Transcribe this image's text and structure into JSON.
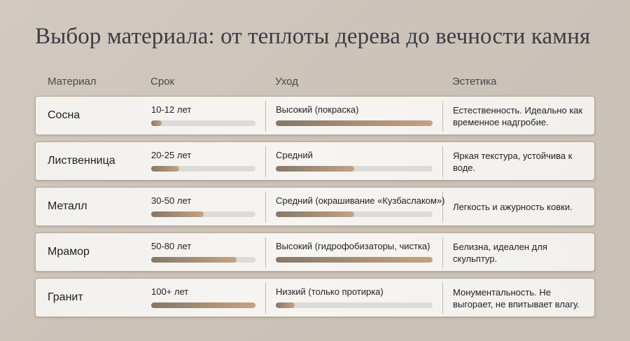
{
  "title": "Выбор материала: от теплоты дерева до вечности камня",
  "headers": {
    "material": "Материал",
    "term": "Срок",
    "care": "Уход",
    "aesthetics": "Эстетика"
  },
  "rows": [
    {
      "material": "Сосна",
      "term": "10-12 лет",
      "term_level": 0.1,
      "care": "Высокий (покраска)",
      "care_level": 1.0,
      "aesthetics": "Естественность. Идеально как временное надгробие."
    },
    {
      "material": "Лиственница",
      "term": "20-25 лет",
      "term_level": 0.27,
      "care": "Средний",
      "care_level": 0.5,
      "aesthetics": "Яркая текстура, устойчива к воде."
    },
    {
      "material": "Металл",
      "term": "30-50 лет",
      "term_level": 0.5,
      "care": "Средний (окрашивание «Кузбаслаком»)",
      "care_level": 0.5,
      "aesthetics": "Легкость и ажурность ковки."
    },
    {
      "material": "Мрамор",
      "term": "50-80 лет",
      "term_level": 0.82,
      "care": "Высокий (гидрофобизаторы, чистка)",
      "care_level": 1.0,
      "aesthetics": "Белизна, идеален для скульптур."
    },
    {
      "material": "Гранит",
      "term": "100+ лет",
      "term_level": 1.0,
      "care": "Низкий (только протирка)",
      "care_level": 0.12,
      "aesthetics": "Монументальность. Не выгорает, не впитывает влагу."
    }
  ],
  "colors": {
    "bar_start": "#85786a",
    "bar_end": "#c4a283",
    "track": "#dddbd8",
    "border": "#b9a894"
  }
}
